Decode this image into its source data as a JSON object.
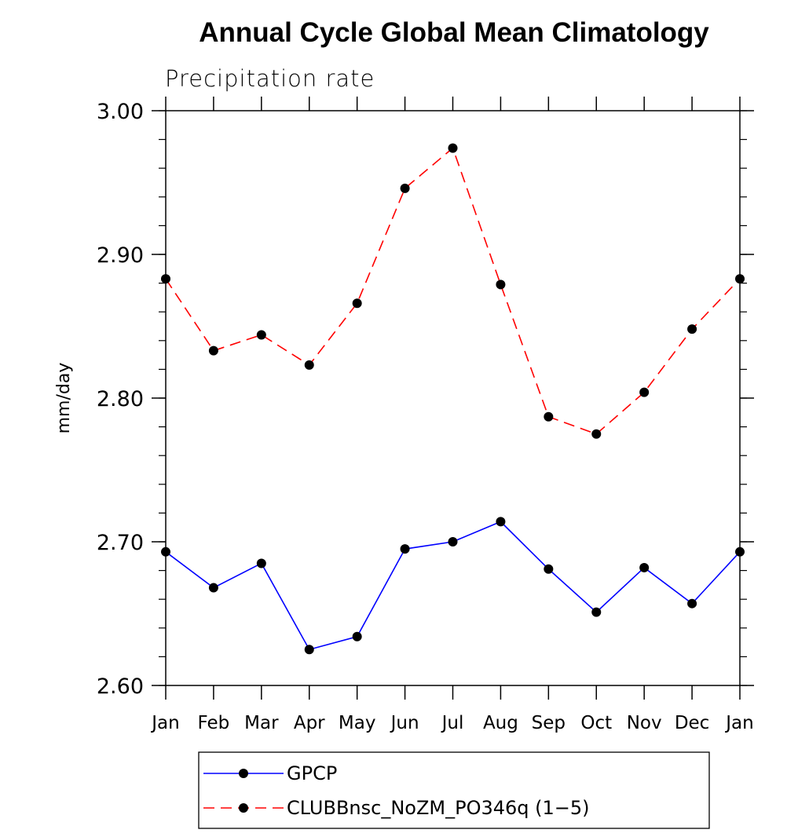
{
  "chart_data": {
    "type": "line",
    "title": "Annual Cycle Global Mean Climatology",
    "subtitle": "Precipitation rate",
    "ylabel": "mm/day",
    "xlabel": "",
    "categories": [
      "Jan",
      "Feb",
      "Mar",
      "Apr",
      "May",
      "Jun",
      "Jul",
      "Aug",
      "Sep",
      "Oct",
      "Nov",
      "Dec",
      "Jan"
    ],
    "ylim": [
      2.6,
      3.0
    ],
    "yticks": [
      "2.60",
      "2.70",
      "2.80",
      "2.90",
      "3.00"
    ],
    "ytick_values": [
      2.6,
      2.7,
      2.8,
      2.9,
      3.0
    ],
    "grid": false,
    "legend_position": "bottom",
    "series": [
      {
        "name": "GPCP",
        "color": "#0000ff",
        "line_style": "solid",
        "marker": "filled-circle",
        "values": [
          2.693,
          2.668,
          2.685,
          2.625,
          2.634,
          2.695,
          2.7,
          2.714,
          2.681,
          2.651,
          2.682,
          2.657,
          2.693
        ]
      },
      {
        "name": "CLUBBnsc_NoZM_PO346q (1−5)",
        "color": "#ff0000",
        "line_style": "dashed",
        "marker": "filled-circle",
        "values": [
          2.883,
          2.833,
          2.844,
          2.823,
          2.866,
          2.946,
          2.974,
          2.879,
          2.787,
          2.775,
          2.804,
          2.848,
          2.883
        ]
      }
    ]
  }
}
